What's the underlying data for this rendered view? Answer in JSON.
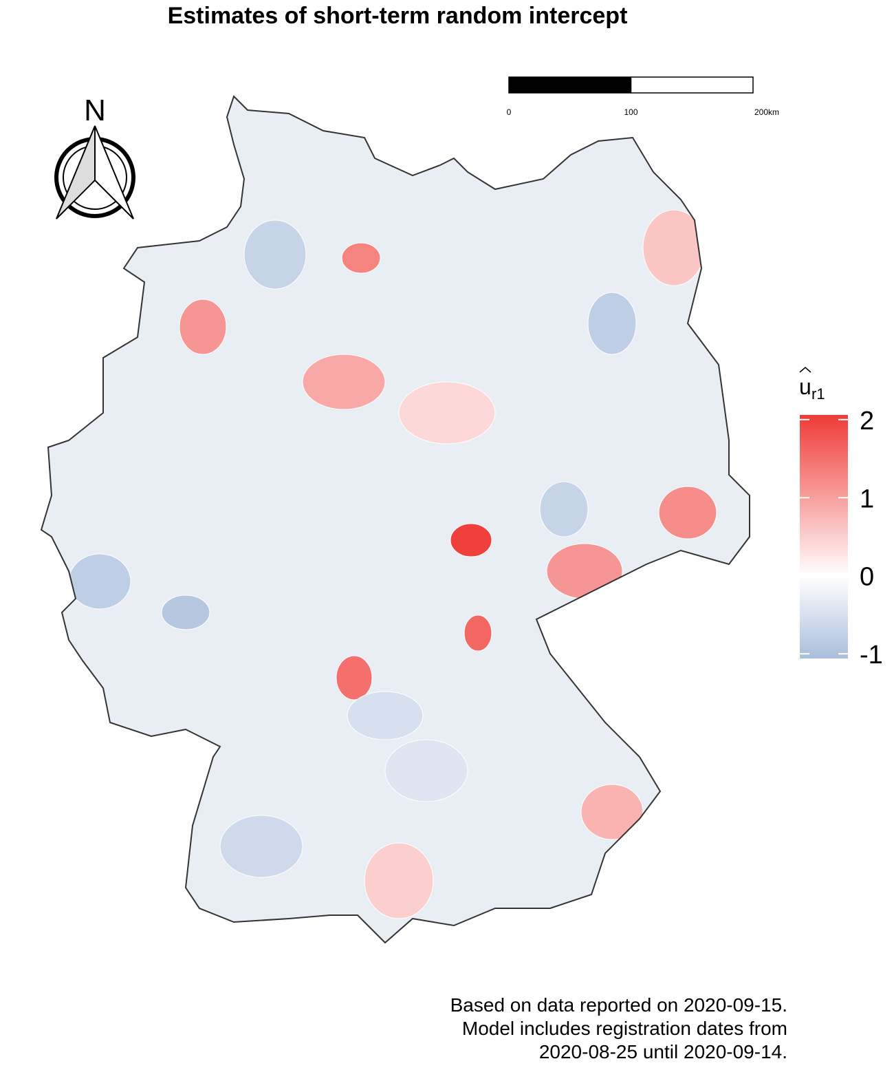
{
  "chart_data": {
    "type": "choropleth",
    "title": "Estimates of short-term random intercept",
    "north_label": "N",
    "scalebar": {
      "ticks": [
        0,
        100,
        {
          "value": 200,
          "label": "200km"
        }
      ]
    },
    "legend": {
      "title": {
        "base": "u",
        "subscript": "r1"
      },
      "lim": [
        -1.06,
        2.06
      ],
      "ticks": [
        2,
        1,
        0,
        -1
      ],
      "colors": {
        "low": "#a9bedb",
        "mid": "#ffffff",
        "high": "#ef3b36"
      }
    },
    "values": [
      2.0,
      1.3,
      1.2,
      1.5,
      1.6,
      1.1,
      0.9,
      1.1,
      0.8,
      -0.8,
      -0.7,
      -0.7,
      -0.9,
      0.6,
      -0.8,
      0.5,
      -0.5,
      -0.6,
      0.4,
      -0.4
    ],
    "caption": [
      "Based on data reported on 2020-09-15.",
      "Model includes registration dates from",
      "2020-08-25 until 2020-09-14."
    ]
  }
}
